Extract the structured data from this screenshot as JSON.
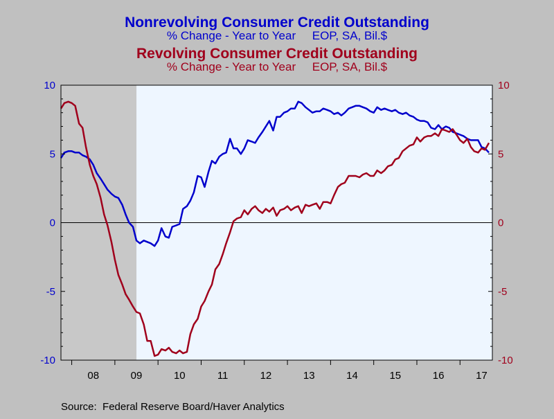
{
  "chart_data": {
    "type": "line",
    "titles": [
      {
        "title": "Nonrevolving Consumer Credit Outstanding",
        "subtitle": "% Change - Year to Year     EOP, SA, Bil.$",
        "color": "#0000cc"
      },
      {
        "title": "Revolving Consumer Credit Outstanding",
        "subtitle": "% Change - Year to Year     EOP, SA, Bil.$",
        "color": "#a0001c"
      }
    ],
    "source": "Source:  Federal Reserve Board/Haver Analytics",
    "x_ticks": [
      "08",
      "09",
      "10",
      "11",
      "12",
      "13",
      "14",
      "15",
      "16",
      "17"
    ],
    "x_range": [
      2007.75,
      2017.75
    ],
    "ylim": [
      -10,
      10
    ],
    "y_ticks_left": [
      "10",
      "5",
      "0",
      "-5",
      "-10"
    ],
    "y_ticks_right": [
      "10",
      "5",
      "0",
      "-5",
      "-10"
    ],
    "recession": {
      "start": 2007.75,
      "end": 2009.5
    },
    "series": [
      {
        "name": "Nonrevolving Consumer Credit Outstanding",
        "color": "#0000cc",
        "points": [
          [
            2007.75,
            4.7
          ],
          [
            2007.83,
            5.1
          ],
          [
            2007.92,
            5.2
          ],
          [
            2008.0,
            5.2
          ],
          [
            2008.08,
            5.1
          ],
          [
            2008.17,
            5.1
          ],
          [
            2008.25,
            4.9
          ],
          [
            2008.33,
            4.8
          ],
          [
            2008.42,
            4.6
          ],
          [
            2008.5,
            4.2
          ],
          [
            2008.58,
            3.6
          ],
          [
            2008.67,
            3.2
          ],
          [
            2008.75,
            2.8
          ],
          [
            2008.83,
            2.4
          ],
          [
            2008.92,
            2.1
          ],
          [
            2009.0,
            1.9
          ],
          [
            2009.08,
            1.8
          ],
          [
            2009.17,
            1.3
          ],
          [
            2009.25,
            0.6
          ],
          [
            2009.33,
            0.0
          ],
          [
            2009.42,
            -0.3
          ],
          [
            2009.5,
            -1.3
          ],
          [
            2009.58,
            -1.5
          ],
          [
            2009.67,
            -1.3
          ],
          [
            2009.75,
            -1.4
          ],
          [
            2009.83,
            -1.5
          ],
          [
            2009.92,
            -1.7
          ],
          [
            2010.0,
            -1.3
          ],
          [
            2010.08,
            -0.4
          ],
          [
            2010.17,
            -1.0
          ],
          [
            2010.25,
            -1.1
          ],
          [
            2010.33,
            -0.3
          ],
          [
            2010.42,
            -0.2
          ],
          [
            2010.5,
            -0.1
          ],
          [
            2010.58,
            1.0
          ],
          [
            2010.67,
            1.2
          ],
          [
            2010.75,
            1.6
          ],
          [
            2010.83,
            2.2
          ],
          [
            2010.92,
            3.4
          ],
          [
            2011.0,
            3.3
          ],
          [
            2011.08,
            2.6
          ],
          [
            2011.17,
            3.7
          ],
          [
            2011.25,
            4.5
          ],
          [
            2011.33,
            4.3
          ],
          [
            2011.42,
            4.8
          ],
          [
            2011.5,
            5.0
          ],
          [
            2011.58,
            5.1
          ],
          [
            2011.67,
            6.1
          ],
          [
            2011.75,
            5.4
          ],
          [
            2011.83,
            5.4
          ],
          [
            2011.92,
            5.0
          ],
          [
            2012.0,
            5.4
          ],
          [
            2012.08,
            6.0
          ],
          [
            2012.17,
            5.9
          ],
          [
            2012.25,
            5.8
          ],
          [
            2012.33,
            6.2
          ],
          [
            2012.42,
            6.6
          ],
          [
            2012.5,
            7.0
          ],
          [
            2012.58,
            7.4
          ],
          [
            2012.67,
            6.7
          ],
          [
            2012.75,
            7.7
          ],
          [
            2012.83,
            7.7
          ],
          [
            2012.92,
            8.0
          ],
          [
            2013.0,
            8.1
          ],
          [
            2013.08,
            8.3
          ],
          [
            2013.17,
            8.3
          ],
          [
            2013.25,
            8.8
          ],
          [
            2013.33,
            8.7
          ],
          [
            2013.42,
            8.4
          ],
          [
            2013.5,
            8.2
          ],
          [
            2013.58,
            8.0
          ],
          [
            2013.67,
            8.1
          ],
          [
            2013.75,
            8.1
          ],
          [
            2013.83,
            8.3
          ],
          [
            2013.92,
            8.2
          ],
          [
            2014.0,
            8.1
          ],
          [
            2014.08,
            7.9
          ],
          [
            2014.17,
            8.0
          ],
          [
            2014.25,
            7.8
          ],
          [
            2014.33,
            8.0
          ],
          [
            2014.42,
            8.3
          ],
          [
            2014.5,
            8.4
          ],
          [
            2014.58,
            8.5
          ],
          [
            2014.67,
            8.5
          ],
          [
            2014.75,
            8.4
          ],
          [
            2014.83,
            8.3
          ],
          [
            2014.92,
            8.1
          ],
          [
            2015.0,
            8.0
          ],
          [
            2015.08,
            8.4
          ],
          [
            2015.17,
            8.2
          ],
          [
            2015.25,
            8.3
          ],
          [
            2015.33,
            8.2
          ],
          [
            2015.42,
            8.1
          ],
          [
            2015.5,
            8.2
          ],
          [
            2015.58,
            8.0
          ],
          [
            2015.67,
            7.9
          ],
          [
            2015.75,
            8.0
          ],
          [
            2015.83,
            7.8
          ],
          [
            2015.92,
            7.7
          ],
          [
            2016.0,
            7.5
          ],
          [
            2016.08,
            7.4
          ],
          [
            2016.17,
            7.4
          ],
          [
            2016.25,
            7.3
          ],
          [
            2016.33,
            6.9
          ],
          [
            2016.42,
            6.8
          ],
          [
            2016.5,
            7.1
          ],
          [
            2016.58,
            6.8
          ],
          [
            2016.67,
            7.0
          ],
          [
            2016.75,
            6.9
          ],
          [
            2016.83,
            6.6
          ],
          [
            2016.92,
            6.5
          ],
          [
            2017.0,
            6.4
          ],
          [
            2017.08,
            6.3
          ],
          [
            2017.17,
            6.1
          ],
          [
            2017.25,
            6.0
          ],
          [
            2017.33,
            6.0
          ],
          [
            2017.42,
            6.0
          ],
          [
            2017.5,
            5.5
          ],
          [
            2017.58,
            5.4
          ],
          [
            2017.67,
            5.1
          ]
        ]
      },
      {
        "name": "Revolving Consumer Credit Outstanding",
        "color": "#a0001c",
        "points": [
          [
            2007.75,
            8.3
          ],
          [
            2007.83,
            8.7
          ],
          [
            2007.92,
            8.8
          ],
          [
            2008.0,
            8.7
          ],
          [
            2008.08,
            8.5
          ],
          [
            2008.17,
            7.2
          ],
          [
            2008.25,
            6.9
          ],
          [
            2008.33,
            5.5
          ],
          [
            2008.42,
            4.2
          ],
          [
            2008.5,
            3.4
          ],
          [
            2008.58,
            2.8
          ],
          [
            2008.67,
            1.8
          ],
          [
            2008.75,
            0.6
          ],
          [
            2008.83,
            -0.2
          ],
          [
            2008.92,
            -1.4
          ],
          [
            2009.0,
            -2.7
          ],
          [
            2009.08,
            -3.8
          ],
          [
            2009.17,
            -4.5
          ],
          [
            2009.25,
            -5.2
          ],
          [
            2009.33,
            -5.6
          ],
          [
            2009.42,
            -6.1
          ],
          [
            2009.5,
            -6.5
          ],
          [
            2009.58,
            -6.6
          ],
          [
            2009.67,
            -7.4
          ],
          [
            2009.75,
            -8.6
          ],
          [
            2009.83,
            -8.6
          ],
          [
            2009.92,
            -9.7
          ],
          [
            2010.0,
            -9.6
          ],
          [
            2010.08,
            -9.2
          ],
          [
            2010.17,
            -9.3
          ],
          [
            2010.25,
            -9.1
          ],
          [
            2010.33,
            -9.4
          ],
          [
            2010.42,
            -9.5
          ],
          [
            2010.5,
            -9.3
          ],
          [
            2010.58,
            -9.5
          ],
          [
            2010.67,
            -9.4
          ],
          [
            2010.75,
            -8.1
          ],
          [
            2010.83,
            -7.4
          ],
          [
            2010.92,
            -7.0
          ],
          [
            2011.0,
            -6.1
          ],
          [
            2011.08,
            -5.7
          ],
          [
            2011.17,
            -5.0
          ],
          [
            2011.25,
            -4.5
          ],
          [
            2011.33,
            -3.4
          ],
          [
            2011.42,
            -3.0
          ],
          [
            2011.5,
            -2.3
          ],
          [
            2011.58,
            -1.5
          ],
          [
            2011.67,
            -0.7
          ],
          [
            2011.75,
            0.1
          ],
          [
            2011.83,
            0.3
          ],
          [
            2011.92,
            0.4
          ],
          [
            2012.0,
            0.9
          ],
          [
            2012.08,
            0.6
          ],
          [
            2012.17,
            1.0
          ],
          [
            2012.25,
            1.2
          ],
          [
            2012.33,
            0.9
          ],
          [
            2012.42,
            0.7
          ],
          [
            2012.5,
            1.0
          ],
          [
            2012.58,
            0.8
          ],
          [
            2012.67,
            1.1
          ],
          [
            2012.75,
            0.5
          ],
          [
            2012.83,
            0.9
          ],
          [
            2012.92,
            1.0
          ],
          [
            2013.0,
            1.2
          ],
          [
            2013.08,
            0.9
          ],
          [
            2013.17,
            1.1
          ],
          [
            2013.25,
            1.2
          ],
          [
            2013.33,
            0.7
          ],
          [
            2013.42,
            1.3
          ],
          [
            2013.5,
            1.2
          ],
          [
            2013.58,
            1.3
          ],
          [
            2013.67,
            1.4
          ],
          [
            2013.75,
            1.0
          ],
          [
            2013.83,
            1.5
          ],
          [
            2013.92,
            1.5
          ],
          [
            2014.0,
            1.4
          ],
          [
            2014.08,
            2.0
          ],
          [
            2014.17,
            2.6
          ],
          [
            2014.25,
            2.8
          ],
          [
            2014.33,
            2.9
          ],
          [
            2014.42,
            3.4
          ],
          [
            2014.5,
            3.4
          ],
          [
            2014.58,
            3.4
          ],
          [
            2014.67,
            3.3
          ],
          [
            2014.75,
            3.5
          ],
          [
            2014.83,
            3.6
          ],
          [
            2014.92,
            3.4
          ],
          [
            2015.0,
            3.4
          ],
          [
            2015.08,
            3.8
          ],
          [
            2015.17,
            3.6
          ],
          [
            2015.25,
            3.8
          ],
          [
            2015.33,
            4.1
          ],
          [
            2015.42,
            4.2
          ],
          [
            2015.5,
            4.6
          ],
          [
            2015.58,
            4.7
          ],
          [
            2015.67,
            5.2
          ],
          [
            2015.75,
            5.4
          ],
          [
            2015.83,
            5.6
          ],
          [
            2015.92,
            5.7
          ],
          [
            2016.0,
            6.2
          ],
          [
            2016.08,
            5.9
          ],
          [
            2016.17,
            6.2
          ],
          [
            2016.25,
            6.3
          ],
          [
            2016.33,
            6.3
          ],
          [
            2016.42,
            6.5
          ],
          [
            2016.5,
            6.3
          ],
          [
            2016.58,
            6.8
          ],
          [
            2016.67,
            6.7
          ],
          [
            2016.75,
            6.6
          ],
          [
            2016.83,
            6.8
          ],
          [
            2016.92,
            6.4
          ],
          [
            2017.0,
            6.0
          ],
          [
            2017.08,
            5.8
          ],
          [
            2017.17,
            6.1
          ],
          [
            2017.25,
            5.5
          ],
          [
            2017.33,
            5.2
          ],
          [
            2017.42,
            5.1
          ],
          [
            2017.5,
            5.4
          ],
          [
            2017.58,
            5.3
          ],
          [
            2017.67,
            5.8
          ]
        ]
      }
    ],
    "zero_line": true,
    "grid": false,
    "plot_background": "#eef6ff",
    "recession_color": "#c8c8c8"
  }
}
